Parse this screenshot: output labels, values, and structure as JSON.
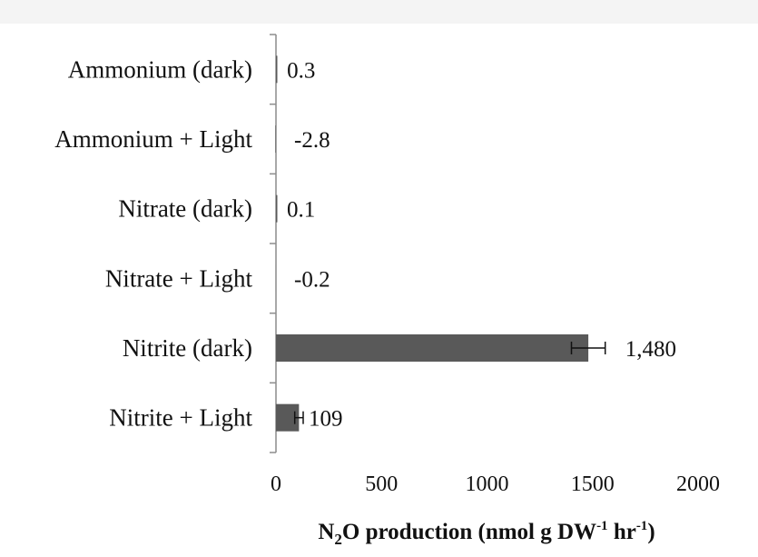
{
  "chart_data": {
    "type": "bar",
    "orientation": "horizontal",
    "categories": [
      "Ammonium (dark)",
      "Ammonium + Light",
      "Nitrate (dark)",
      "Nitrate + Light",
      "Nitrite (dark)",
      "Nitrite + Light"
    ],
    "values": [
      0.3,
      -2.8,
      0.1,
      -0.2,
      1480,
      109
    ],
    "value_labels": [
      "0.3",
      "-2.8",
      "0.1",
      "-0.2",
      "1,480",
      "109"
    ],
    "errors": [
      0,
      0,
      0,
      0,
      80,
      20
    ],
    "xlim": [
      0,
      2000
    ],
    "x_ticks": [
      0,
      500,
      1000,
      1500,
      2000
    ],
    "x_tick_labels": [
      "0",
      "500",
      "1000",
      "1500",
      "2000"
    ],
    "xlabel_parts": {
      "n": "N",
      "sub2": "2",
      "rest": "O production  (nmol  g DW",
      "sup1": "-1",
      "hr": " hr",
      "sup2": "-1",
      "close": ")"
    },
    "grid": false,
    "legend": "none",
    "bar_color": "#595959"
  }
}
